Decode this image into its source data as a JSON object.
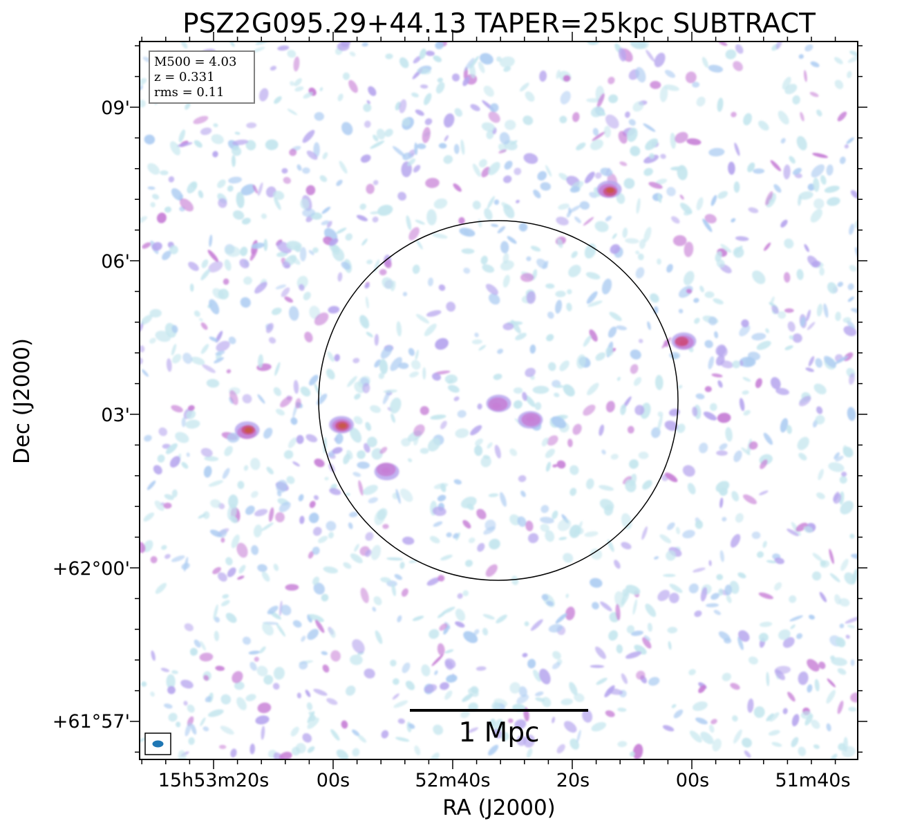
{
  "chart_data": {
    "type": "heatmap",
    "title": "PSZ2G095.29+44.13 TAPER=25kpc SUBTRACT",
    "xlabel": "RA (J2000)",
    "ylabel": "Dec (J2000)",
    "x_ticks": [
      "15h53m20s",
      "00s",
      "52m40s",
      "20s",
      "00s",
      "51m40s"
    ],
    "y_ticks": [
      "09'",
      "06'",
      "03'",
      "+62°00'",
      "+61°57'"
    ],
    "info_box": [
      "M500 = 4.03",
      "z = 0.331",
      "rms = 0.11"
    ],
    "scalebar_label": "1 Mpc",
    "colormap": [
      "#c4e6ee",
      "#aecdf2",
      "#b7a6ee",
      "#c77fd6",
      "#cc4f7f",
      "#c8593c"
    ],
    "noise_field": "random",
    "bright_sources": [
      {
        "id": "north-source",
        "peak": 0.95
      },
      {
        "id": "east-source",
        "peak": 0.8
      },
      {
        "id": "center-west-source",
        "peak": 0.85
      },
      {
        "id": "west-source",
        "peak": 0.9
      },
      {
        "id": "center-sw-source",
        "peak": 0.6
      },
      {
        "id": "center-source",
        "peak": 0.55
      },
      {
        "id": "center-east-source",
        "peak": 0.55
      }
    ],
    "overlays": [
      "r500-circle",
      "beam-ellipse",
      "scale-bar"
    ]
  }
}
